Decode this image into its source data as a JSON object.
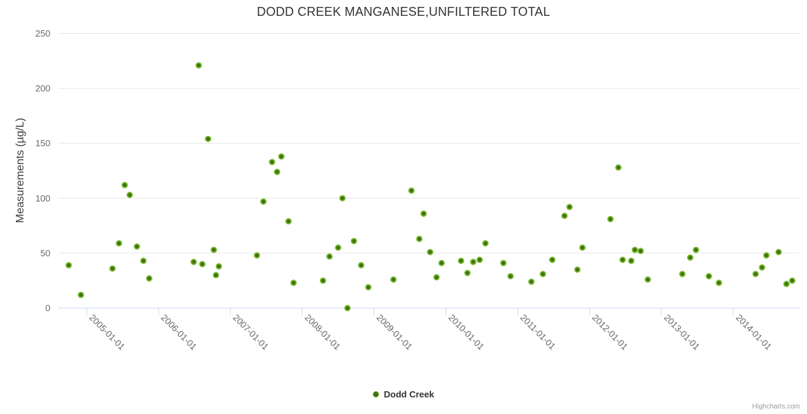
{
  "chart_data": {
    "type": "scatter",
    "title": "DODD CREEK MANGANESE,UNFILTERED TOTAL",
    "xlabel": "",
    "ylabel": "Measurements (µg/L)",
    "ylim": [
      0,
      250
    ],
    "yticks": [
      0,
      50,
      100,
      150,
      200,
      250
    ],
    "xlim_years": [
      2004.61,
      2014.92
    ],
    "xticks": [
      {
        "year": 2005,
        "label": "2005-01-01"
      },
      {
        "year": 2006,
        "label": "2006-01-01"
      },
      {
        "year": 2007,
        "label": "2007-01-01"
      },
      {
        "year": 2008,
        "label": "2008-01-01"
      },
      {
        "year": 2009,
        "label": "2009-01-01"
      },
      {
        "year": 2010,
        "label": "2010-01-01"
      },
      {
        "year": 2011,
        "label": "2011-01-01"
      },
      {
        "year": 2012,
        "label": "2012-01-01"
      },
      {
        "year": 2013,
        "label": "2013-01-01"
      },
      {
        "year": 2014,
        "label": "2014-01-01"
      }
    ],
    "grid": "horizontal",
    "legend_position": "bottom-center",
    "credits_label": "Highcharts.com",
    "colors": {
      "grid": "#e6e6e6",
      "axis_line": "#ccd6eb",
      "axis_text": "#666666",
      "title_text": "#333333",
      "marker_outer": "#7fc13a",
      "marker_mid": "#72b528",
      "marker_inner": "#3f6c0c",
      "credits_text": "#9a9aa0"
    },
    "series": [
      {
        "name": "Dodd Creek",
        "points": [
          [
            2004.75,
            39
          ],
          [
            2004.92,
            12
          ],
          [
            2005.36,
            36
          ],
          [
            2005.45,
            59
          ],
          [
            2005.53,
            112
          ],
          [
            2005.6,
            103
          ],
          [
            2005.7,
            56
          ],
          [
            2005.79,
            43
          ],
          [
            2005.87,
            27
          ],
          [
            2006.49,
            42
          ],
          [
            2006.56,
            221
          ],
          [
            2006.61,
            40
          ],
          [
            2006.69,
            154
          ],
          [
            2006.77,
            53
          ],
          [
            2006.8,
            30
          ],
          [
            2006.84,
            38
          ],
          [
            2007.37,
            48
          ],
          [
            2007.46,
            97
          ],
          [
            2007.58,
            133
          ],
          [
            2007.65,
            124
          ],
          [
            2007.71,
            138
          ],
          [
            2007.81,
            79
          ],
          [
            2007.88,
            23
          ],
          [
            2008.29,
            25
          ],
          [
            2008.38,
            47
          ],
          [
            2008.5,
            55
          ],
          [
            2008.56,
            100
          ],
          [
            2008.63,
            0
          ],
          [
            2008.72,
            61
          ],
          [
            2008.82,
            39
          ],
          [
            2008.92,
            19
          ],
          [
            2009.27,
            26
          ],
          [
            2009.52,
            107
          ],
          [
            2009.63,
            63
          ],
          [
            2009.69,
            86
          ],
          [
            2009.78,
            51
          ],
          [
            2009.87,
            28
          ],
          [
            2009.94,
            41
          ],
          [
            2010.21,
            43
          ],
          [
            2010.3,
            32
          ],
          [
            2010.38,
            42
          ],
          [
            2010.47,
            44
          ],
          [
            2010.55,
            59
          ],
          [
            2010.8,
            41
          ],
          [
            2010.9,
            29
          ],
          [
            2011.19,
            24
          ],
          [
            2011.35,
            31
          ],
          [
            2011.48,
            44
          ],
          [
            2011.65,
            84
          ],
          [
            2011.72,
            92
          ],
          [
            2011.83,
            35
          ],
          [
            2011.9,
            55
          ],
          [
            2012.29,
            81
          ],
          [
            2012.4,
            128
          ],
          [
            2012.46,
            44
          ],
          [
            2012.58,
            43
          ],
          [
            2012.63,
            53
          ],
          [
            2012.71,
            52
          ],
          [
            2012.81,
            26
          ],
          [
            2013.29,
            31
          ],
          [
            2013.4,
            46
          ],
          [
            2013.48,
            53
          ],
          [
            2013.66,
            29
          ],
          [
            2013.8,
            23
          ],
          [
            2014.31,
            31
          ],
          [
            2014.4,
            37
          ],
          [
            2014.46,
            48
          ],
          [
            2014.63,
            51
          ],
          [
            2014.74,
            22
          ],
          [
            2014.82,
            25
          ]
        ]
      }
    ]
  }
}
